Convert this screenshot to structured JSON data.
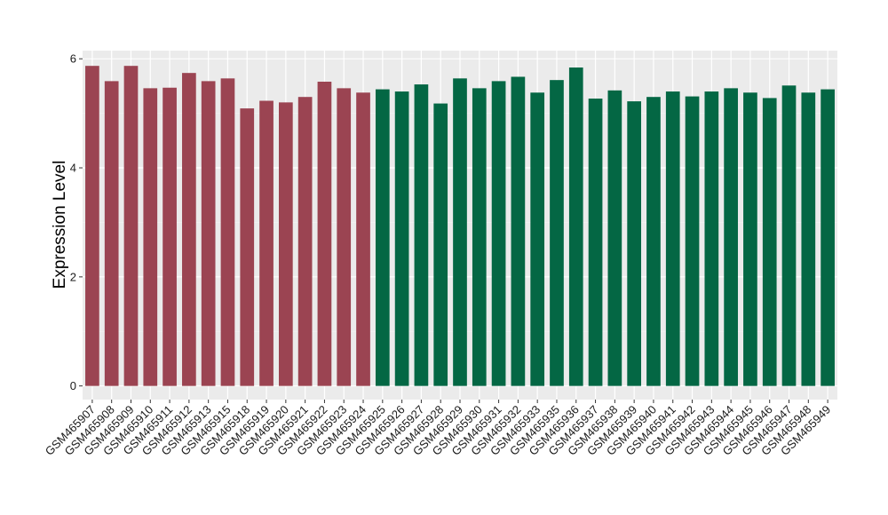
{
  "chart_data": {
    "type": "bar",
    "ylabel": "Expression Level",
    "xlabel": "",
    "ylim": [
      -0.25,
      6.15
    ],
    "yticks": [
      0,
      2,
      4,
      6
    ],
    "grid": true,
    "panel_background": "#ebebeb",
    "categories": [
      "GSM465907",
      "GSM465908",
      "GSM465909",
      "GSM465910",
      "GSM465911",
      "GSM465912",
      "GSM465913",
      "GSM465915",
      "GSM465918",
      "GSM465919",
      "GSM465920",
      "GSM465921",
      "GSM465922",
      "GSM465923",
      "GSM465924",
      "GSM465925",
      "GSM465926",
      "GSM465927",
      "GSM465928",
      "GSM465929",
      "GSM465930",
      "GSM465931",
      "GSM465932",
      "GSM465933",
      "GSM465935",
      "GSM465936",
      "GSM465937",
      "GSM465938",
      "GSM465939",
      "GSM465940",
      "GSM465941",
      "GSM465942",
      "GSM465943",
      "GSM465944",
      "GSM465945",
      "GSM465946",
      "GSM465947",
      "GSM465948",
      "GSM465949"
    ],
    "values": [
      5.87,
      5.59,
      5.87,
      5.46,
      5.47,
      5.74,
      5.59,
      5.64,
      5.09,
      5.23,
      5.2,
      5.3,
      5.58,
      5.46,
      5.38,
      5.44,
      5.4,
      5.53,
      5.18,
      5.64,
      5.46,
      5.59,
      5.67,
      5.38,
      5.61,
      5.84,
      5.27,
      5.42,
      5.22,
      5.3,
      5.4,
      5.31,
      5.4,
      5.46,
      5.38,
      5.28,
      5.51,
      5.38,
      5.44
    ],
    "group_sizes": [
      15,
      24
    ],
    "group_colors": [
      "#9b4452",
      "#046744"
    ]
  }
}
